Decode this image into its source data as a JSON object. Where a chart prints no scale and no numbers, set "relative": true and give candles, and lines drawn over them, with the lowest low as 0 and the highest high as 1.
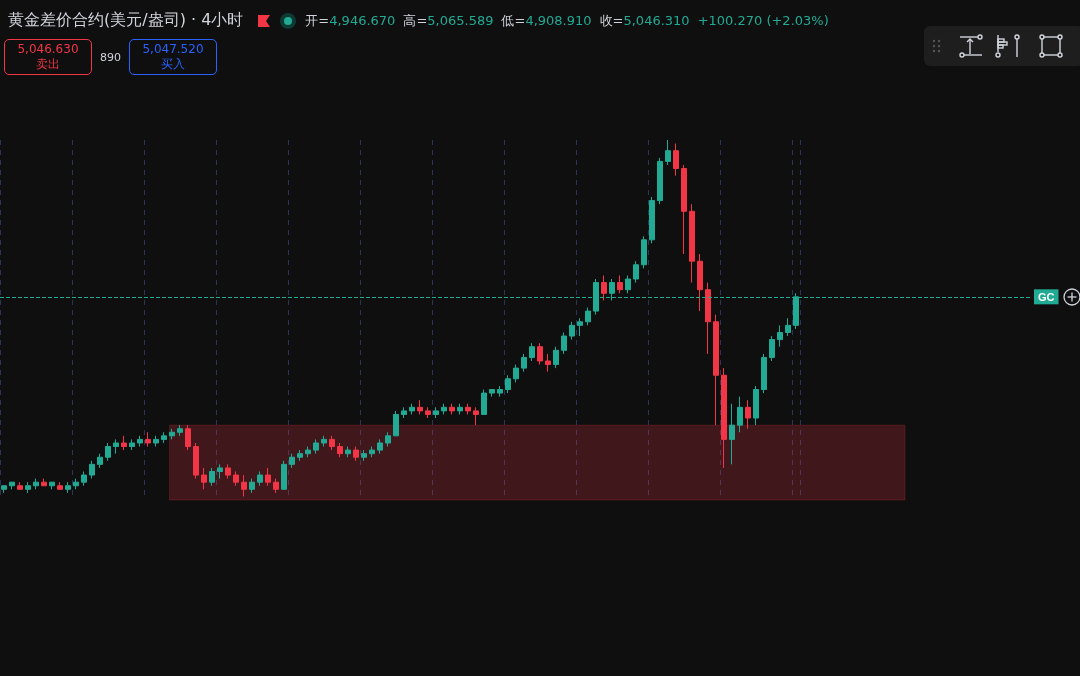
{
  "chart_data": {
    "type": "candlestick",
    "title": "黄金差价合约(美元/盎司) · 4小时",
    "relative": true,
    "grid": "x",
    "categories": [
      null,
      null,
      null,
      null,
      null,
      null,
      null,
      null,
      null,
      null,
      null,
      null,
      null,
      null,
      null,
      null,
      null,
      null,
      null,
      null,
      null,
      null,
      null,
      null,
      null,
      null,
      null,
      null,
      null,
      null,
      null,
      null,
      null,
      null,
      null,
      null,
      null,
      null,
      null,
      null,
      null,
      null,
      null,
      null,
      null,
      null,
      null,
      null,
      null,
      null,
      null,
      null,
      null,
      null,
      null,
      null,
      null,
      null,
      null,
      null,
      null,
      null,
      null,
      null,
      null,
      null,
      null,
      null,
      null,
      null,
      null,
      null,
      null,
      null,
      null,
      null,
      null,
      null,
      null,
      null,
      null,
      null,
      null,
      null,
      null,
      null,
      null,
      null,
      null,
      null,
      null,
      null,
      null,
      null,
      null,
      null,
      null,
      null,
      null,
      null
    ],
    "series": [
      {
        "colors": [
          "#22ab94",
          "#22ab94",
          "#f23645",
          "#22ab94",
          "#22ab94",
          "#f23645",
          "#22ab94",
          "#f23645",
          "#22ab94",
          "#22ab94",
          "#22ab94",
          "#22ab94",
          "#22ab94",
          "#22ab94",
          "#22ab94",
          "#f23645",
          "#22ab94",
          "#22ab94",
          "#f23645",
          "#22ab94",
          "#22ab94",
          "#22ab94",
          "#22ab94",
          "#f23645",
          "#f23645",
          "#f23645",
          "#22ab94",
          "#22ab94",
          "#f23645",
          "#f23645",
          "#f23645",
          "#22ab94",
          "#22ab94",
          "#f23645",
          "#f23645",
          "#22ab94",
          "#22ab94",
          "#22ab94",
          "#22ab94",
          "#22ab94",
          "#22ab94",
          "#f23645",
          "#f23645",
          "#22ab94",
          "#f23645",
          "#22ab94",
          "#22ab94",
          "#22ab94",
          "#22ab94",
          "#22ab94",
          "#22ab94",
          "#22ab94",
          "#f23645",
          "#f23645",
          "#22ab94",
          "#22ab94",
          "#f23645",
          "#22ab94",
          "#f23645",
          "#f23645",
          "#22ab94",
          "#22ab94",
          "#22ab94",
          "#22ab94",
          "#22ab94",
          "#22ab94",
          "#22ab94",
          "#f23645",
          "#f23645",
          "#22ab94",
          "#22ab94",
          "#22ab94",
          "#22ab94",
          "#22ab94",
          "#22ab94",
          "#f23645",
          "#22ab94",
          "#f23645",
          "#22ab94",
          "#22ab94",
          "#22ab94",
          "#22ab94",
          "#22ab94",
          "#22ab94",
          "#f23645",
          "#f23645",
          "#f23645",
          "#f23645",
          "#f23645",
          "#f23645",
          "#f23645",
          "#22ab94",
          "#22ab94",
          "#f23645",
          "#22ab94",
          "#22ab94",
          "#22ab94",
          "#22ab94",
          "#22ab94",
          "#22ab94"
        ],
        "ohlc": [
          [
            0.02,
            0.03,
            0.01,
            0.03
          ],
          [
            0.03,
            0.04,
            0.02,
            0.04
          ],
          [
            0.03,
            0.04,
            0.02,
            0.02
          ],
          [
            0.02,
            0.04,
            0.01,
            0.03
          ],
          [
            0.03,
            0.05,
            0.02,
            0.04
          ],
          [
            0.04,
            0.05,
            0.03,
            0.03
          ],
          [
            0.03,
            0.04,
            0.02,
            0.04
          ],
          [
            0.03,
            0.04,
            0.02,
            0.02
          ],
          [
            0.02,
            0.04,
            0.01,
            0.03
          ],
          [
            0.03,
            0.05,
            0.02,
            0.04
          ],
          [
            0.04,
            0.07,
            0.03,
            0.06
          ],
          [
            0.06,
            0.1,
            0.05,
            0.09
          ],
          [
            0.09,
            0.12,
            0.08,
            0.11
          ],
          [
            0.11,
            0.15,
            0.1,
            0.14
          ],
          [
            0.14,
            0.16,
            0.12,
            0.15
          ],
          [
            0.15,
            0.17,
            0.13,
            0.14
          ],
          [
            0.14,
            0.16,
            0.13,
            0.15
          ],
          [
            0.15,
            0.17,
            0.14,
            0.16
          ],
          [
            0.16,
            0.18,
            0.14,
            0.15
          ],
          [
            0.15,
            0.17,
            0.14,
            0.16
          ],
          [
            0.16,
            0.18,
            0.15,
            0.17
          ],
          [
            0.17,
            0.19,
            0.16,
            0.18
          ],
          [
            0.18,
            0.2,
            0.17,
            0.19
          ],
          [
            0.19,
            0.2,
            0.13,
            0.14
          ],
          [
            0.14,
            0.15,
            0.05,
            0.06
          ],
          [
            0.06,
            0.08,
            0.02,
            0.04
          ],
          [
            0.04,
            0.08,
            0.03,
            0.07
          ],
          [
            0.07,
            0.09,
            0.05,
            0.08
          ],
          [
            0.08,
            0.09,
            0.05,
            0.06
          ],
          [
            0.06,
            0.07,
            0.03,
            0.04
          ],
          [
            0.04,
            0.06,
            0.0,
            0.02
          ],
          [
            0.02,
            0.05,
            0.01,
            0.04
          ],
          [
            0.04,
            0.07,
            0.03,
            0.06
          ],
          [
            0.06,
            0.08,
            0.03,
            0.04
          ],
          [
            0.04,
            0.05,
            0.01,
            0.02
          ],
          [
            0.02,
            0.1,
            0.02,
            0.09
          ],
          [
            0.09,
            0.12,
            0.08,
            0.11
          ],
          [
            0.11,
            0.13,
            0.1,
            0.12
          ],
          [
            0.12,
            0.14,
            0.11,
            0.13
          ],
          [
            0.13,
            0.16,
            0.12,
            0.15
          ],
          [
            0.15,
            0.17,
            0.14,
            0.16
          ],
          [
            0.16,
            0.17,
            0.13,
            0.14
          ],
          [
            0.14,
            0.15,
            0.11,
            0.12
          ],
          [
            0.12,
            0.14,
            0.11,
            0.13
          ],
          [
            0.13,
            0.14,
            0.1,
            0.11
          ],
          [
            0.11,
            0.13,
            0.1,
            0.12
          ],
          [
            0.12,
            0.14,
            0.11,
            0.13
          ],
          [
            0.13,
            0.16,
            0.12,
            0.15
          ],
          [
            0.15,
            0.18,
            0.14,
            0.17
          ],
          [
            0.17,
            0.24,
            0.17,
            0.23
          ],
          [
            0.23,
            0.25,
            0.22,
            0.24
          ],
          [
            0.24,
            0.26,
            0.23,
            0.25
          ],
          [
            0.25,
            0.27,
            0.23,
            0.24
          ],
          [
            0.24,
            0.25,
            0.22,
            0.23
          ],
          [
            0.23,
            0.25,
            0.22,
            0.24
          ],
          [
            0.24,
            0.26,
            0.23,
            0.25
          ],
          [
            0.25,
            0.26,
            0.23,
            0.24
          ],
          [
            0.24,
            0.26,
            0.23,
            0.25
          ],
          [
            0.25,
            0.26,
            0.23,
            0.24
          ],
          [
            0.24,
            0.25,
            0.2,
            0.23
          ],
          [
            0.23,
            0.3,
            0.23,
            0.29
          ],
          [
            0.29,
            0.3,
            0.28,
            0.3
          ],
          [
            0.29,
            0.31,
            0.28,
            0.3
          ],
          [
            0.3,
            0.34,
            0.29,
            0.33
          ],
          [
            0.33,
            0.37,
            0.32,
            0.36
          ],
          [
            0.36,
            0.4,
            0.35,
            0.39
          ],
          [
            0.39,
            0.43,
            0.38,
            0.42
          ],
          [
            0.42,
            0.43,
            0.37,
            0.38
          ],
          [
            0.38,
            0.4,
            0.35,
            0.37
          ],
          [
            0.37,
            0.42,
            0.36,
            0.41
          ],
          [
            0.41,
            0.46,
            0.4,
            0.45
          ],
          [
            0.45,
            0.49,
            0.44,
            0.48
          ],
          [
            0.48,
            0.5,
            0.45,
            0.49
          ],
          [
            0.49,
            0.53,
            0.48,
            0.52
          ],
          [
            0.52,
            0.61,
            0.51,
            0.6
          ],
          [
            0.6,
            0.62,
            0.55,
            0.57
          ],
          [
            0.57,
            0.61,
            0.55,
            0.6
          ],
          [
            0.6,
            0.62,
            0.57,
            0.58
          ],
          [
            0.58,
            0.62,
            0.57,
            0.61
          ],
          [
            0.61,
            0.66,
            0.6,
            0.65
          ],
          [
            0.65,
            0.73,
            0.64,
            0.72
          ],
          [
            0.72,
            0.84,
            0.71,
            0.83
          ],
          [
            0.83,
            0.95,
            0.82,
            0.94
          ],
          [
            0.94,
            1.0,
            0.93,
            0.97
          ],
          [
            0.97,
            0.99,
            0.9,
            0.92
          ],
          [
            0.92,
            0.93,
            0.68,
            0.8
          ],
          [
            0.8,
            0.82,
            0.6,
            0.66
          ],
          [
            0.66,
            0.68,
            0.52,
            0.58
          ],
          [
            0.58,
            0.6,
            0.4,
            0.49
          ],
          [
            0.49,
            0.51,
            0.2,
            0.34
          ],
          [
            0.34,
            0.36,
            0.08,
            0.16
          ],
          [
            0.16,
            0.26,
            0.09,
            0.2
          ],
          [
            0.2,
            0.28,
            0.18,
            0.25
          ],
          [
            0.25,
            0.27,
            0.19,
            0.22
          ],
          [
            0.22,
            0.31,
            0.2,
            0.3
          ],
          [
            0.3,
            0.4,
            0.29,
            0.39
          ],
          [
            0.39,
            0.45,
            0.38,
            0.44
          ],
          [
            0.44,
            0.48,
            0.42,
            0.46
          ],
          [
            0.46,
            0.5,
            0.45,
            0.48
          ],
          [
            0.48,
            0.57,
            0.47,
            0.56
          ]
        ]
      }
    ],
    "ref_lines": [
      {
        "axis": "y",
        "value": 0.56,
        "label": "GC",
        "color": "#22ab94",
        "line_style": "dashed"
      }
    ],
    "bands": [
      {
        "axis": "y",
        "from": -0.01,
        "to": 0.2,
        "color": "#f23645"
      }
    ],
    "annotations": [
      "开=4,946.670",
      "高=5,065.589",
      "低=4,908.910",
      "收=5,046.310",
      "+100.270 (+2.03%)",
      "5,046.630",
      "卖出",
      "890",
      "5,047.520",
      "买入"
    ]
  }
}
